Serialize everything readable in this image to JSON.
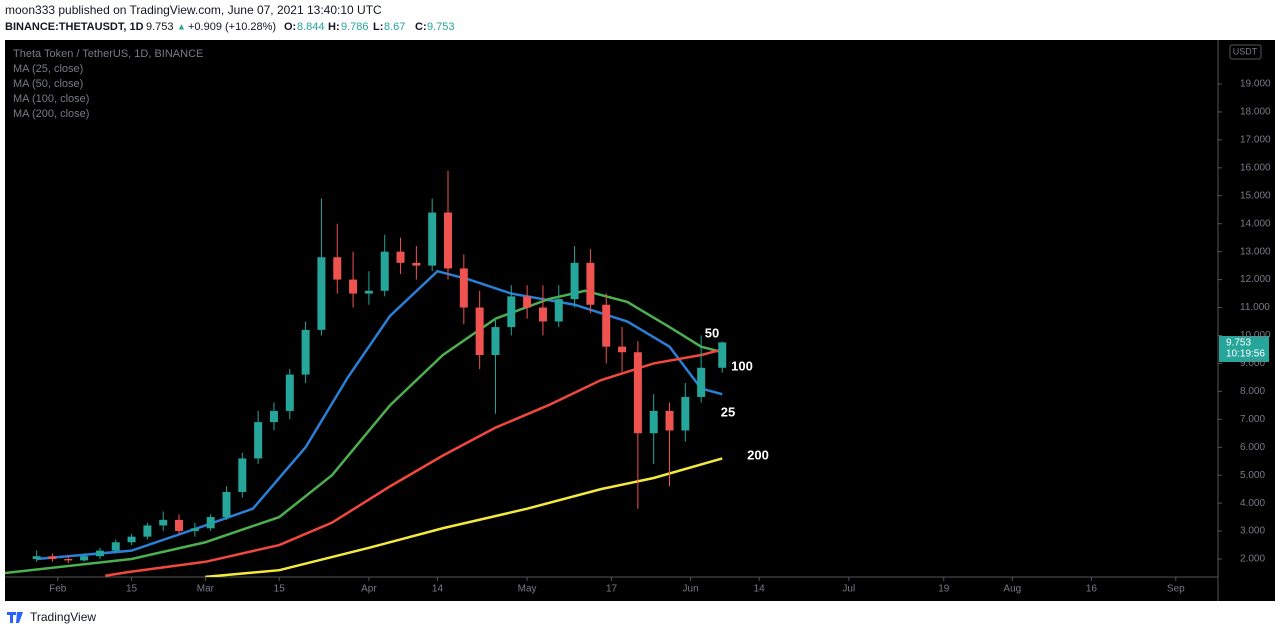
{
  "header": {
    "line1": "moon333 published on TradingView.com, June 07, 2021 13:40:10 UTC",
    "symbol": "BINANCE:THETAUSDT, 1D",
    "last": 9.753,
    "arrow": "▲",
    "change": "+0.909 (+10.28%)",
    "o": "O:",
    "h": "H:",
    "l": "L:",
    "c": "C:"
  },
  "chart_data": {
    "type": "candlestick",
    "title": "Theta Token / TetherUS, 1D, BINANCE",
    "x": [
      "2021-01-28",
      "2021-01-31",
      "2021-02-03",
      "2021-02-06",
      "2021-02-09",
      "2021-02-12",
      "2021-02-15",
      "2021-02-18",
      "2021-02-21",
      "2021-02-24",
      "2021-02-27",
      "2021-03-02",
      "2021-03-05",
      "2021-03-08",
      "2021-03-11",
      "2021-03-14",
      "2021-03-17",
      "2021-03-20",
      "2021-03-23",
      "2021-03-26",
      "2021-03-29",
      "2021-04-01",
      "2021-04-04",
      "2021-04-07",
      "2021-04-10",
      "2021-04-13",
      "2021-04-16",
      "2021-04-19",
      "2021-04-22",
      "2021-04-25",
      "2021-04-28",
      "2021-05-01",
      "2021-05-04",
      "2021-05-07",
      "2021-05-10",
      "2021-05-13",
      "2021-05-16",
      "2021-05-19",
      "2021-05-22",
      "2021-05-25",
      "2021-05-28",
      "2021-05-31",
      "2021-06-03",
      "2021-06-07"
    ],
    "open": [
      2.0,
      2.1,
      2.0,
      1.95,
      2.1,
      2.3,
      2.6,
      2.8,
      3.2,
      3.4,
      3.0,
      3.1,
      3.5,
      4.4,
      5.6,
      6.9,
      7.3,
      8.6,
      10.2,
      12.8,
      12.0,
      11.5,
      11.6,
      13.0,
      12.6,
      12.5,
      14.4,
      12.4,
      11.0,
      9.3,
      10.3,
      11.4,
      11.0,
      10.5,
      11.3,
      12.6,
      11.1,
      9.6,
      9.4,
      6.5,
      7.3,
      6.6,
      7.8,
      8.844
    ],
    "high": [
      2.3,
      2.2,
      2.1,
      2.2,
      2.4,
      2.7,
      2.9,
      3.3,
      3.7,
      3.6,
      3.3,
      3.6,
      4.6,
      5.8,
      7.3,
      7.6,
      8.8,
      10.5,
      14.9,
      14.0,
      13.0,
      12.3,
      13.6,
      13.5,
      13.2,
      14.9,
      15.9,
      12.9,
      11.6,
      10.6,
      11.8,
      11.8,
      11.8,
      11.8,
      13.2,
      13.1,
      11.5,
      10.3,
      9.8,
      7.9,
      7.6,
      8.3,
      10.0,
      9.786
    ],
    "low": [
      1.9,
      1.9,
      1.85,
      1.9,
      2.0,
      2.2,
      2.5,
      2.7,
      3.0,
      2.9,
      2.8,
      3.0,
      3.4,
      4.2,
      5.4,
      6.6,
      7.0,
      8.3,
      10.0,
      11.5,
      11.0,
      11.1,
      11.4,
      12.2,
      12.0,
      12.3,
      12.0,
      10.4,
      8.8,
      7.2,
      10.0,
      10.6,
      10.0,
      10.3,
      11.0,
      10.8,
      9.0,
      8.7,
      3.8,
      5.4,
      4.6,
      6.2,
      7.6,
      8.67
    ],
    "close": [
      2.1,
      2.0,
      1.95,
      2.1,
      2.3,
      2.6,
      2.8,
      3.2,
      3.4,
      3.0,
      3.1,
      3.5,
      4.4,
      5.6,
      6.9,
      7.3,
      8.6,
      10.2,
      12.8,
      12.0,
      11.5,
      11.6,
      13.0,
      12.6,
      12.5,
      14.4,
      12.4,
      11.0,
      9.3,
      10.3,
      11.4,
      11.0,
      10.5,
      11.3,
      12.6,
      11.1,
      9.6,
      9.4,
      6.5,
      7.3,
      6.6,
      7.8,
      8.844,
      9.753
    ],
    "up_color": "#26a69a",
    "down_color": "#ef5350",
    "series": [
      {
        "name": "MA (25, close)",
        "label": "25",
        "color": "#2a7fd6",
        "x": [
          "2021-01-28",
          "2021-02-15",
          "2021-03-01",
          "2021-03-10",
          "2021-03-20",
          "2021-03-28",
          "2021-04-05",
          "2021-04-14",
          "2021-04-20",
          "2021-04-28",
          "2021-05-10",
          "2021-05-20",
          "2021-05-28",
          "2021-06-03",
          "2021-06-07"
        ],
        "values": [
          2.0,
          2.3,
          3.2,
          3.8,
          6.0,
          8.5,
          10.7,
          12.3,
          12.0,
          11.5,
          11.1,
          10.5,
          9.6,
          8.1,
          7.9
        ]
      },
      {
        "name": "MA (50, close)",
        "label": "50",
        "color": "#4caf50",
        "x": [
          "2021-01-22",
          "2021-02-15",
          "2021-03-01",
          "2021-03-15",
          "2021-03-25",
          "2021-04-05",
          "2021-04-15",
          "2021-04-25",
          "2021-05-05",
          "2021-05-12",
          "2021-05-20",
          "2021-05-28",
          "2021-06-03",
          "2021-06-07"
        ],
        "values": [
          1.5,
          2.0,
          2.6,
          3.5,
          5.0,
          7.5,
          9.3,
          10.6,
          11.3,
          11.6,
          11.2,
          10.3,
          9.6,
          9.4
        ]
      },
      {
        "name": "MA (100, close)",
        "label": "100",
        "color": "#f0483e",
        "x": [
          "2021-02-10",
          "2021-02-15",
          "2021-03-01",
          "2021-03-15",
          "2021-03-25",
          "2021-04-05",
          "2021-04-15",
          "2021-04-25",
          "2021-05-05",
          "2021-05-15",
          "2021-05-25",
          "2021-06-03",
          "2021-06-07"
        ],
        "values": [
          1.4,
          1.55,
          1.9,
          2.5,
          3.3,
          4.6,
          5.7,
          6.7,
          7.5,
          8.4,
          9.0,
          9.3,
          9.5
        ]
      },
      {
        "name": "MA (200, close)",
        "label": "200",
        "color": "#f5e93c",
        "x": [
          "2021-03-01",
          "2021-03-15",
          "2021-04-01",
          "2021-04-15",
          "2021-05-01",
          "2021-05-15",
          "2021-05-25",
          "2021-06-07"
        ],
        "values": [
          1.36,
          1.6,
          2.4,
          3.1,
          3.8,
          4.5,
          4.9,
          5.6
        ]
      }
    ],
    "ylim": [
      1.356,
      20.575
    ],
    "yticks": [
      {
        "value": 2,
        "label": "2.000"
      },
      {
        "value": 3,
        "label": "3.000"
      },
      {
        "value": 4,
        "label": "4.000"
      },
      {
        "value": 5,
        "label": "5.000"
      },
      {
        "value": 6,
        "label": "6.000"
      },
      {
        "value": 7,
        "label": "7.000"
      },
      {
        "value": 8,
        "label": "8.000"
      },
      {
        "value": 9,
        "label": "9.000"
      },
      {
        "value": 10,
        "label": "10.000"
      },
      {
        "value": 11,
        "label": "11.000"
      },
      {
        "value": 12,
        "label": "12.000"
      },
      {
        "value": 13,
        "label": "13.000"
      },
      {
        "value": 14,
        "label": "14.000"
      },
      {
        "value": 15,
        "label": "15.000"
      },
      {
        "value": 16,
        "label": "16.000"
      },
      {
        "value": 17,
        "label": "17.000"
      },
      {
        "value": 18,
        "label": "18.000"
      },
      {
        "value": 19,
        "label": "19.000"
      }
    ],
    "xlim": [
      "2021-01-22",
      "2021-09-09"
    ],
    "xticks": [
      {
        "value": "2021-02-01",
        "label": "Feb"
      },
      {
        "value": "2021-02-15",
        "label": "15"
      },
      {
        "value": "2021-03-01",
        "label": "Mar"
      },
      {
        "value": "2021-03-15",
        "label": "15"
      },
      {
        "value": "2021-04-01",
        "label": "Apr"
      },
      {
        "value": "2021-04-14",
        "label": "14"
      },
      {
        "value": "2021-05-01",
        "label": "May"
      },
      {
        "value": "2021-05-17",
        "label": "17"
      },
      {
        "value": "2021-06-01",
        "label": "Jun"
      },
      {
        "value": "2021-06-14",
        "label": "14"
      },
      {
        "value": "2021-07-01",
        "label": "Jul"
      },
      {
        "value": "2021-07-19",
        "label": "19"
      },
      {
        "value": "2021-08-01",
        "label": "Aug"
      },
      {
        "value": "2021-08-16",
        "label": "16"
      },
      {
        "value": "2021-09-01",
        "label": "Sep"
      }
    ],
    "currency": "USDT",
    "countdown": "10:19:56"
  },
  "footer": "TradingView"
}
